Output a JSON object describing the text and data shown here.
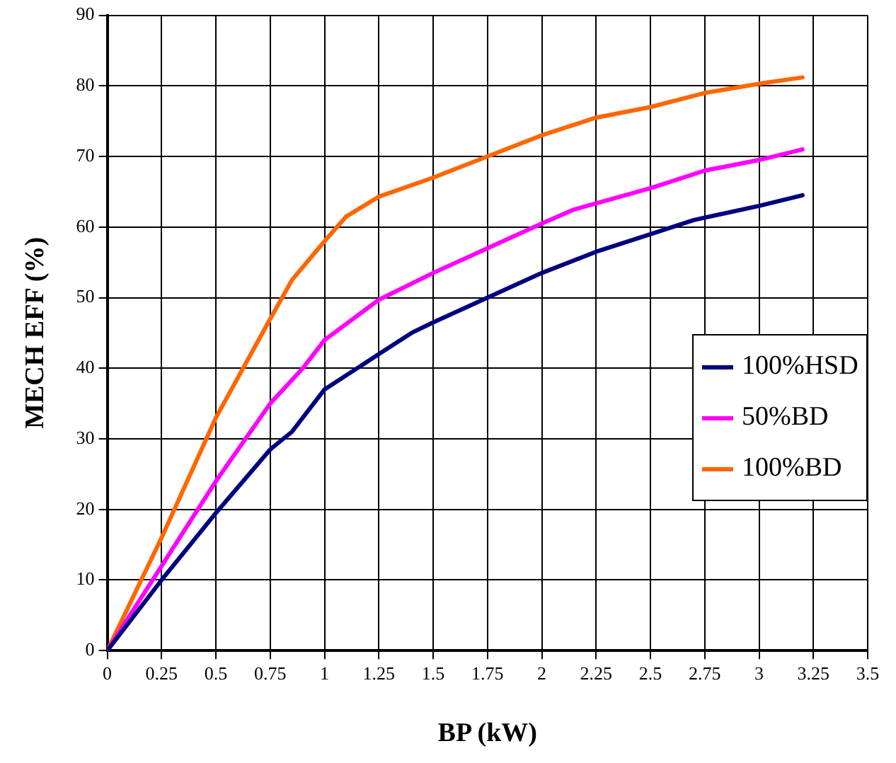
{
  "chart_data": {
    "type": "line",
    "xlabel": "BP (kW)",
    "ylabel": "MECH EFF (%)",
    "xlim": [
      0,
      3.5
    ],
    "xticks": [
      0,
      0.25,
      0.5,
      0.75,
      1,
      1.25,
      1.5,
      1.75,
      2,
      2.25,
      2.5,
      2.75,
      3,
      3.25,
      3.5
    ],
    "ylim": [
      0,
      90
    ],
    "yticks": [
      0,
      10,
      20,
      30,
      40,
      50,
      60,
      70,
      80,
      90
    ],
    "grid": true,
    "legend": "right",
    "marker": "none",
    "line_style": "solid",
    "series": [
      {
        "name": "100%HSD",
        "color": "#000080",
        "x": [
          0,
          0.25,
          0.5,
          0.75,
          0.85,
          1,
          1.25,
          1.4,
          1.5,
          1.75,
          2,
          2.25,
          2.5,
          2.7,
          3,
          3.2
        ],
        "values": [
          0,
          10,
          19.5,
          28.5,
          31,
          37,
          42,
          45,
          46.5,
          50,
          53.5,
          56.5,
          59,
          61,
          63,
          64.5
        ]
      },
      {
        "name": "50%BD",
        "color": "#ff00ff",
        "x": [
          0,
          0.25,
          0.5,
          0.75,
          0.9,
          1,
          1.25,
          1.5,
          1.75,
          2,
          2.15,
          2.5,
          2.75,
          3,
          3.2
        ],
        "values": [
          0,
          12,
          24,
          35,
          40,
          44,
          49.7,
          53.5,
          57,
          60.5,
          62.5,
          65.5,
          68,
          69.5,
          71
        ]
      },
      {
        "name": "100%BD",
        "color": "#ff6600",
        "x": [
          0,
          0.25,
          0.5,
          0.75,
          0.85,
          1,
          1.1,
          1.25,
          1.5,
          1.75,
          2,
          2.25,
          2.5,
          2.75,
          3,
          3.2
        ],
        "values": [
          0,
          16,
          33,
          47,
          52.5,
          58,
          61.5,
          64.3,
          67,
          70,
          73,
          75.5,
          77,
          79,
          80.3,
          81.2
        ]
      }
    ]
  }
}
